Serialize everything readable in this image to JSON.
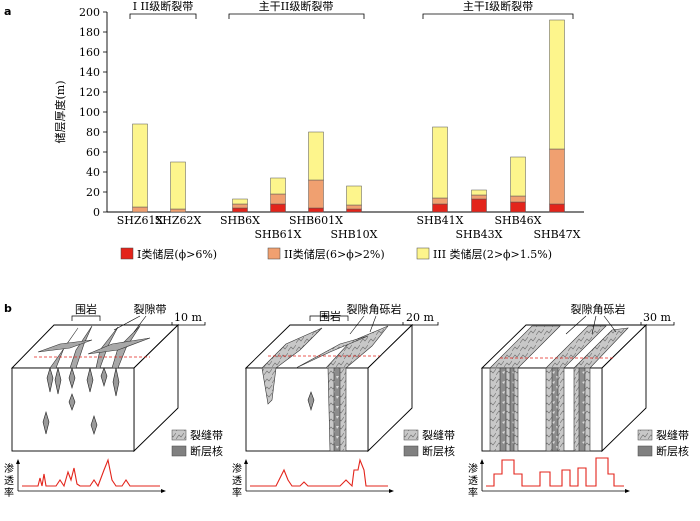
{
  "panel_a": {
    "label": "a",
    "fault_groups": [
      {
        "name": "I II级断裂带"
      },
      {
        "name": "主干II级断裂带"
      },
      {
        "name": "主干I级断裂带"
      }
    ]
  },
  "chart_data": {
    "type": "bar",
    "stacked": true,
    "ylabel": "储层厚度(m)",
    "ylim": [
      0,
      200
    ],
    "yticks": [
      "0",
      "20",
      "40",
      "60",
      "80",
      "100",
      "120",
      "140",
      "160",
      "180",
      "200"
    ],
    "categories": [
      "SHZ61X",
      "SHZ62X",
      "SHB6X",
      "SHB61X",
      "SHB601X",
      "SHB10X",
      "SHB41X",
      "SHB43X",
      "SHB46X",
      "SHB47X"
    ],
    "series": [
      {
        "name": "I类储层(ϕ>6%)",
        "color": "#e3241b",
        "values": [
          0,
          0,
          4,
          8,
          4,
          3,
          8,
          13,
          10,
          8
        ]
      },
      {
        "name": "II类储层(6>ϕ>2%)",
        "color": "#f0a070",
        "values": [
          5,
          3,
          4,
          10,
          28,
          4,
          6,
          4,
          6,
          55
        ]
      },
      {
        "name": "III 类储层(2>ϕ>1.5%)",
        "color": "#fdf58c",
        "values": [
          83,
          47,
          5,
          16,
          48,
          19,
          71,
          5,
          39,
          129
        ]
      }
    ],
    "grid": false,
    "legend": "bottom"
  },
  "panel_b": {
    "label": "b",
    "blocks": [
      {
        "annot1": "围岩",
        "annot2": "裂隙带",
        "scale": "10 m",
        "leg_frac": "裂缝带",
        "leg_core": "断层核",
        "perm": [
          "渗",
          "透",
          "率"
        ]
      },
      {
        "annot1": "围岩",
        "annot2": "裂隙角砾岩",
        "scale": "20 m",
        "leg_frac": "裂缝带",
        "leg_core": "断层核",
        "perm": [
          "渗",
          "透",
          "率"
        ]
      },
      {
        "annot1": "",
        "annot2": "裂隙角砾岩",
        "scale": "30 m",
        "leg_frac": "裂缝带",
        "leg_core": "断层核",
        "perm": [
          "渗",
          "透",
          "率"
        ]
      }
    ]
  }
}
